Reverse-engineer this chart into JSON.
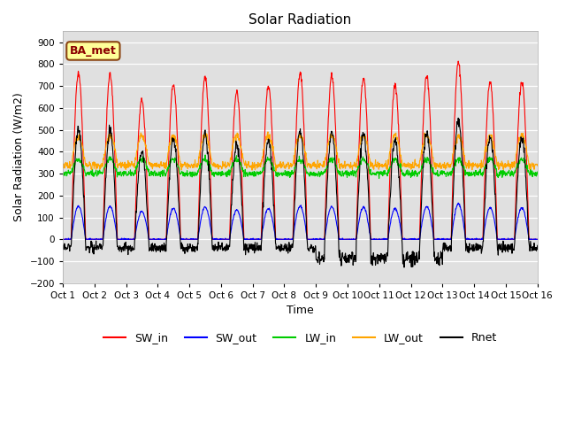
{
  "title": "Solar Radiation",
  "ylabel": "Solar Radiation (W/m2)",
  "xlabel": "Time",
  "ylim": [
    -200,
    950
  ],
  "yticks": [
    -200,
    -100,
    0,
    100,
    200,
    300,
    400,
    500,
    600,
    700,
    800,
    900
  ],
  "n_days": 15,
  "pts_per_day": 96,
  "annotation": "BA_met",
  "colors": {
    "SW_in": "#ff0000",
    "SW_out": "#0000ff",
    "LW_in": "#00cc00",
    "LW_out": "#ffa500",
    "Rnet": "#000000"
  },
  "x_tick_labels": [
    "Oct 1",
    "Oct 2",
    "Oct 3",
    "Oct 4",
    "Oct 5",
    "Oct 6",
    "Oct 7",
    "Oct 8",
    "Oct 9",
    "Oct 10",
    "Oct 11",
    "Oct 12",
    "Oct 13",
    "Oct 14",
    "Oct 15",
    "Oct 16"
  ],
  "bg_color": "#e0e0e0",
  "peaks_SW_in": [
    760,
    750,
    635,
    710,
    740,
    670,
    700,
    760,
    745,
    735,
    705,
    745,
    810,
    720,
    720
  ],
  "linewidth": 0.8,
  "figsize": [
    6.4,
    4.8
  ],
  "dpi": 100
}
